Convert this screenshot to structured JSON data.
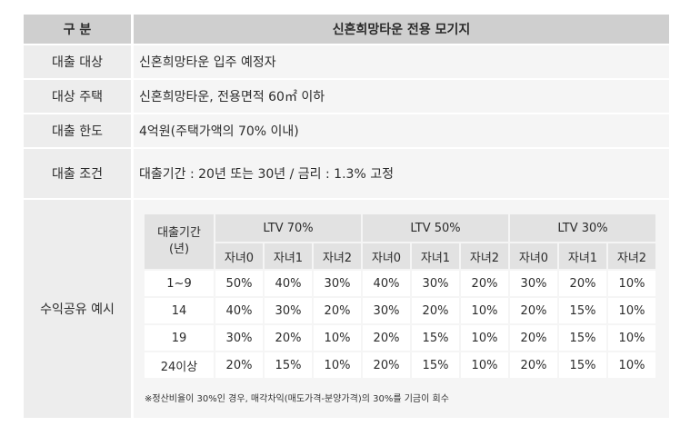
{
  "header": {
    "col1": "구 분",
    "col2": "신혼희망타운 전용 모기지"
  },
  "rows": [
    {
      "label": "대출 대상",
      "value": "신혼희망타운 입주 예정자"
    },
    {
      "label": "대상 주택",
      "value": "신혼희망타운, 전용면적 60㎡ 이하"
    },
    {
      "label": "대출 한도",
      "value": "4억원(주택가액의 70% 이내)"
    },
    {
      "label": "대출 조건",
      "value": "대출기간 : 20년 또는 30년 / 금리 : 1.3% 고정"
    }
  ],
  "profit": {
    "label": "수익공유 예시",
    "period_header_line1": "대출기간",
    "period_header_line2": "(년)",
    "ltv_headers": [
      "LTV 70%",
      "LTV 50%",
      "LTV 30%"
    ],
    "sub_headers": [
      "자녀0",
      "자녀1",
      "자녀2",
      "자녀0",
      "자녀1",
      "자녀2",
      "자녀0",
      "자녀1",
      "자녀2"
    ],
    "data_rows": [
      {
        "period": "1~9",
        "values": [
          "50%",
          "40%",
          "30%",
          "40%",
          "30%",
          "20%",
          "30%",
          "20%",
          "10%"
        ]
      },
      {
        "period": "14",
        "values": [
          "40%",
          "30%",
          "20%",
          "30%",
          "20%",
          "10%",
          "20%",
          "15%",
          "10%"
        ]
      },
      {
        "period": "19",
        "values": [
          "30%",
          "20%",
          "10%",
          "20%",
          "15%",
          "10%",
          "20%",
          "15%",
          "10%"
        ]
      },
      {
        "period": "24이상",
        "values": [
          "20%",
          "15%",
          "10%",
          "20%",
          "15%",
          "10%",
          "20%",
          "15%",
          "10%"
        ]
      }
    ],
    "note": "※정산비율이 30%인 경우, 매각차익(매도가격-분양가격)의 30%를 기금이 회수"
  }
}
